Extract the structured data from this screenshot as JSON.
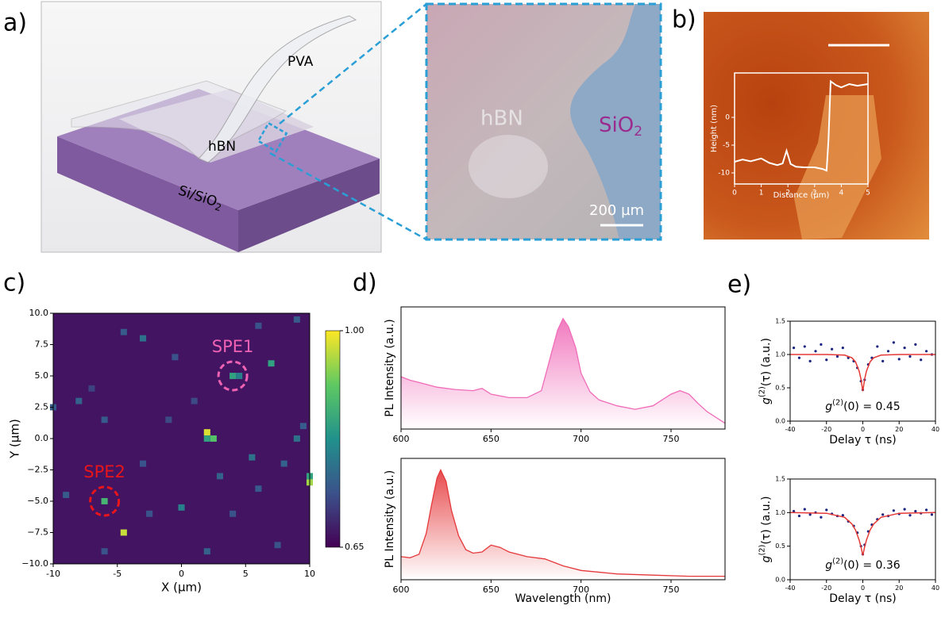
{
  "panel_labels": {
    "a": "a)",
    "b": "b)",
    "c": "c)",
    "d": "d)",
    "e": "e)"
  },
  "panel_a": {
    "pva": "PVA",
    "hbn": "hBN",
    "substrate": {
      "base": "Si/SiO",
      "sub": "2"
    },
    "zoom_hbn": "hBN",
    "zoom_sio2": {
      "base": "SiO",
      "sub": "2"
    },
    "scale_bar": "200 µm"
  },
  "chart_data": [
    {
      "type": "line",
      "xlabel": "Distance (µm)",
      "ylabel": "Height (nm)",
      "color": "#ffffff",
      "x": [
        0,
        0.3,
        0.6,
        1,
        1.3,
        1.6,
        1.8,
        1.95,
        2.1,
        2.3,
        2.6,
        3,
        3.3,
        3.45,
        3.52,
        3.6,
        3.8,
        4,
        4.3,
        4.6,
        5
      ],
      "values": [
        -8,
        -7.6,
        -7.9,
        -7.4,
        -8.2,
        -8.6,
        -8.3,
        -6,
        -8.4,
        -8.9,
        -9,
        -9,
        -9.3,
        -9.6,
        -4,
        6.5,
        5.8,
        5.4,
        6,
        5.7,
        6
      ],
      "xlim": [
        0,
        5
      ],
      "ylim": [
        -12,
        8
      ],
      "xticks": [
        0,
        1,
        2,
        3,
        4,
        5
      ],
      "yticks": [
        -10,
        -5,
        0
      ]
    },
    {
      "type": "heatmap",
      "xlabel": "X (µm)",
      "ylabel": "Y (µm)",
      "background": 0.67,
      "x": [
        4,
        4.5,
        2,
        2.5,
        2,
        -6,
        -4.5,
        10,
        10,
        7,
        -3,
        -4.5,
        -8,
        -6,
        -7,
        9.5,
        9,
        8,
        5.5,
        6,
        3,
        0,
        -2.5,
        -9,
        -10,
        6,
        9,
        -0.5,
        2,
        -6,
        7.5,
        4,
        -3,
        -1,
        1
      ],
      "y": [
        5,
        5,
        0.5,
        0,
        0,
        -5,
        -7.5,
        -3.5,
        -3,
        6,
        8,
        8.5,
        3,
        1.5,
        4,
        1,
        0,
        -2,
        -1.5,
        -4,
        -3,
        -5.5,
        -6,
        -4.5,
        2.5,
        9,
        9.5,
        6.5,
        -9,
        -9,
        -8.5,
        -6,
        -2,
        1.5,
        3
      ],
      "values": [
        0.85,
        0.8,
        0.98,
        0.9,
        0.85,
        0.88,
        0.97,
        0.95,
        0.85,
        0.85,
        0.78,
        0.75,
        0.76,
        0.75,
        0.72,
        0.75,
        0.78,
        0.76,
        0.78,
        0.75,
        0.76,
        0.8,
        0.74,
        0.75,
        0.75,
        0.74,
        0.75,
        0.74,
        0.76,
        0.74,
        0.74,
        0.74,
        0.74,
        0.73,
        0.73
      ],
      "xlim": [
        -10,
        10
      ],
      "ylim": [
        -10,
        10
      ],
      "xticks": [
        -10,
        -5,
        0,
        5,
        10
      ],
      "yticks": [
        {
          "value": -10,
          "label": "−10.0"
        },
        {
          "value": -7.5,
          "label": "−7.5"
        },
        {
          "value": -5,
          "label": "−5.0"
        },
        {
          "value": -2.5,
          "label": "−2.5"
        },
        {
          "value": 0,
          "label": "0.0"
        },
        {
          "value": 2.5,
          "label": "2.5"
        },
        {
          "value": 5,
          "label": "5.0"
        },
        {
          "value": 7.5,
          "label": "7.5"
        },
        {
          "value": 10,
          "label": "10.0"
        }
      ],
      "clim": [
        0.65,
        1
      ],
      "cticks": [
        {
          "value": 0.65,
          "label": "0.65"
        },
        {
          "value": 1,
          "label": "1.00"
        }
      ],
      "annotations": [
        {
          "text": "SPE1",
          "x": 4,
          "y": 5,
          "color": "#f062b4"
        },
        {
          "text": "SPE2",
          "x": -6,
          "y": -5,
          "color": "#e8151b"
        }
      ]
    },
    {
      "type": "area",
      "ylabel": "PL Intensity (a.u.)",
      "color": "#f06bb8",
      "x": [
        600,
        605,
        610,
        620,
        630,
        640,
        645,
        650,
        660,
        670,
        678,
        683,
        687,
        690,
        693,
        697,
        700,
        705,
        710,
        720,
        730,
        740,
        750,
        755,
        760,
        765,
        770,
        780
      ],
      "values": [
        0.45,
        0.42,
        0.4,
        0.36,
        0.34,
        0.33,
        0.35,
        0.3,
        0.27,
        0.27,
        0.33,
        0.62,
        0.85,
        0.95,
        0.88,
        0.7,
        0.48,
        0.32,
        0.25,
        0.2,
        0.17,
        0.2,
        0.3,
        0.33,
        0.3,
        0.22,
        0.15,
        0.05
      ],
      "xlim": [
        600,
        780
      ],
      "ylim": [
        0,
        1.05
      ],
      "xticks": [
        600,
        650,
        700,
        750
      ]
    },
    {
      "type": "area",
      "xlabel": "Wavelength (nm)",
      "ylabel": "PL Intensity (a.u.)",
      "color": "#e5383b",
      "x": [
        600,
        605,
        610,
        614,
        617,
        620,
        622,
        625,
        628,
        632,
        636,
        640,
        645,
        650,
        655,
        660,
        670,
        680,
        690,
        700,
        720,
        740,
        760,
        780
      ],
      "values": [
        0.2,
        0.19,
        0.22,
        0.4,
        0.65,
        0.88,
        0.95,
        0.85,
        0.6,
        0.38,
        0.26,
        0.23,
        0.24,
        0.3,
        0.28,
        0.24,
        0.2,
        0.18,
        0.12,
        0.08,
        0.05,
        0.04,
        0.03,
        0.03
      ],
      "xlim": [
        600,
        780
      ],
      "ylim": [
        0,
        1.05
      ],
      "xticks": [
        600,
        650,
        700,
        750
      ]
    },
    {
      "type": "scatter",
      "xlabel": "Delay τ (ns)",
      "ylabel": {
        "base": "g",
        "sup": "(2)",
        "rest": "(τ) (a.u.)"
      },
      "annotation": {
        "base": "g",
        "sup": "(2)",
        "rest": "(0) = 0.45"
      },
      "color": "#1a237e",
      "fit_color": "#e53935",
      "x": [
        -38,
        -35,
        -32,
        -29,
        -26,
        -23,
        -20,
        -17,
        -14,
        -11,
        -8,
        -5,
        -3,
        -1,
        0,
        1,
        3,
        5,
        8,
        11,
        14,
        17,
        20,
        23,
        26,
        29,
        32,
        35,
        38
      ],
      "values": [
        1.1,
        0.95,
        1.12,
        0.9,
        1.05,
        1.15,
        0.92,
        1.08,
        0.97,
        1.1,
        0.95,
        0.9,
        0.8,
        0.6,
        0.47,
        0.62,
        0.85,
        0.95,
        1.12,
        0.9,
        1.05,
        1.18,
        0.93,
        1.1,
        0.97,
        1.15,
        0.92,
        1.05,
        1
      ],
      "fit_x": [
        -40,
        -20,
        -10,
        -6,
        -4,
        -2,
        -1,
        0,
        1,
        2,
        4,
        6,
        10,
        20,
        40
      ],
      "fit_values": [
        1,
        1,
        0.99,
        0.95,
        0.89,
        0.75,
        0.63,
        0.45,
        0.63,
        0.75,
        0.89,
        0.95,
        0.99,
        1,
        1
      ],
      "xlim": [
        -40,
        40
      ],
      "ylim": [
        0,
        1.5
      ],
      "xticks": [
        -40,
        -20,
        0,
        20,
        40
      ],
      "yticks": [
        {
          "value": 0,
          "label": "0.0"
        },
        {
          "value": 0.5,
          "label": "0.5"
        },
        {
          "value": 1,
          "label": "1.0"
        },
        {
          "value": 1.5,
          "label": "1.5"
        }
      ]
    },
    {
      "type": "scatter",
      "xlabel": "Delay τ (ns)",
      "ylabel": {
        "base": "g",
        "sup": "(2)",
        "rest": "(τ) (a.u.)"
      },
      "annotation": {
        "base": "g",
        "sup": "(2)",
        "rest": "(0) = 0.36"
      },
      "color": "#1a237e",
      "fit_color": "#e53935",
      "x": [
        -38,
        -35,
        -32,
        -29,
        -26,
        -23,
        -20,
        -17,
        -14,
        -11,
        -8,
        -5,
        -3,
        -1,
        0,
        1,
        3,
        5,
        8,
        11,
        14,
        17,
        20,
        23,
        26,
        29,
        32,
        35,
        38
      ],
      "values": [
        1.02,
        0.95,
        1.05,
        0.97,
        1,
        0.93,
        1.04,
        0.98,
        0.95,
        0.96,
        0.87,
        0.8,
        0.7,
        0.5,
        0.38,
        0.52,
        0.72,
        0.82,
        0.9,
        0.97,
        0.95,
        1.03,
        0.98,
        1.05,
        0.96,
        1.02,
        0.99,
        1.04,
        0.97
      ],
      "fit_x": [
        -40,
        -20,
        -10,
        -6,
        -4,
        -2,
        -1,
        0,
        1,
        2,
        4,
        6,
        10,
        20,
        40
      ],
      "fit_values": [
        1,
        0.99,
        0.93,
        0.83,
        0.74,
        0.59,
        0.49,
        0.36,
        0.49,
        0.59,
        0.74,
        0.83,
        0.93,
        0.99,
        1
      ],
      "xlim": [
        -40,
        40
      ],
      "ylim": [
        0,
        1.5
      ],
      "xticks": [
        -40,
        -20,
        0,
        20,
        40
      ],
      "yticks": [
        {
          "value": 0,
          "label": "0.0"
        },
        {
          "value": 0.5,
          "label": "0.5"
        },
        {
          "value": 1,
          "label": "1.0"
        },
        {
          "value": 1.5,
          "label": "1.5"
        }
      ]
    }
  ]
}
